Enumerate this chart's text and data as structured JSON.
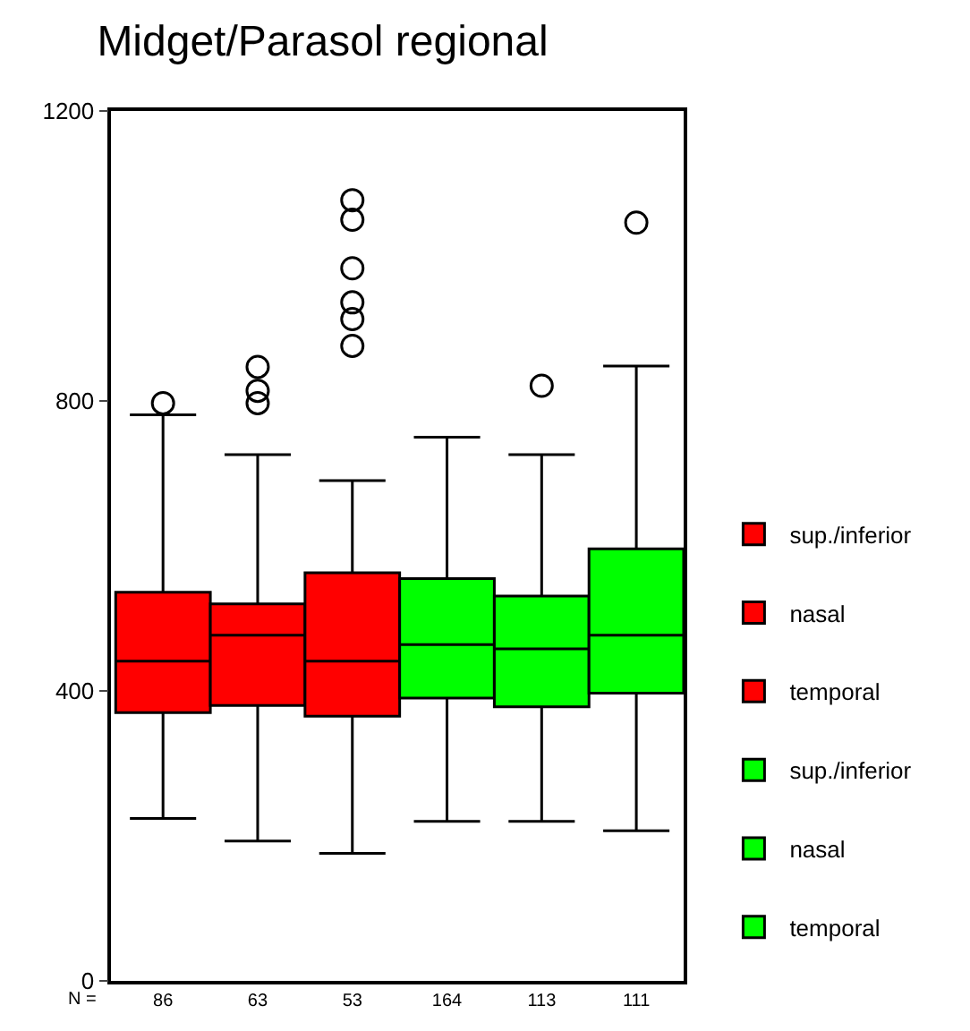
{
  "chart_data": {
    "type": "box",
    "title": "Midget/Parasol regional",
    "categories": [
      "86",
      "63",
      "53",
      "164",
      "113",
      "111"
    ],
    "annotations": [
      "N ="
    ],
    "ylim": [
      0,
      1200
    ],
    "yticks": [
      0,
      400,
      800,
      1200
    ],
    "grid": false,
    "legend": "right",
    "series": [
      {
        "name": "sup./inferior",
        "color": "#ff0000",
        "boxes": [
          {
            "low": 224,
            "q1": 370,
            "median": 441,
            "q3": 536,
            "high": 781,
            "outliers": [
              797
            ]
          },
          null,
          null,
          null,
          null,
          null
        ]
      },
      {
        "name": "nasal",
        "color": "#ff0000",
        "boxes": [
          null,
          {
            "low": 193,
            "q1": 380,
            "median": 477,
            "q3": 520,
            "high": 726,
            "outliers": [
              797,
              814,
              847
            ]
          },
          null,
          null,
          null,
          null
        ]
      },
      {
        "name": "temporal",
        "color": "#ff0000",
        "boxes": [
          null,
          null,
          {
            "low": 176,
            "q1": 365,
            "median": 441,
            "q3": 563,
            "high": 690,
            "outliers": [
              876,
              913,
              936,
              983,
              1050,
              1077
            ]
          },
          null,
          null,
          null
        ]
      },
      {
        "name": "sup./inferior",
        "color": "#00ff00",
        "boxes": [
          null,
          null,
          null,
          {
            "low": 220,
            "q1": 390,
            "median": 464,
            "q3": 555,
            "high": 750
          },
          null,
          null
        ]
      },
      {
        "name": "nasal",
        "color": "#00ff00",
        "boxes": [
          null,
          null,
          null,
          null,
          {
            "low": 220,
            "q1": 378,
            "median": 458,
            "q3": 531,
            "high": 726,
            "outliers": [
              821
            ]
          },
          null
        ]
      },
      {
        "name": "temporal",
        "color": "#00ff00",
        "boxes": [
          null,
          null,
          null,
          null,
          null,
          {
            "low": 207,
            "q1": 397,
            "median": 477,
            "q3": 596,
            "high": 848,
            "outliers": [
              1046
            ]
          }
        ]
      }
    ]
  }
}
